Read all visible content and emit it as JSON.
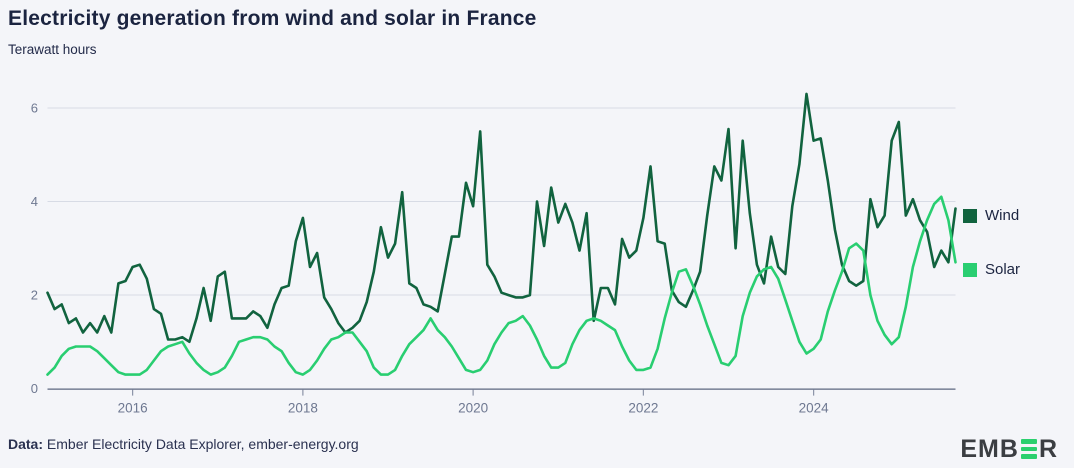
{
  "header": {
    "title": "Electricity generation from wind and solar in France",
    "subtitle": "Terawatt hours"
  },
  "legend": [
    {
      "label": "Wind",
      "color": "#11633f"
    },
    {
      "label": "Solar",
      "color": "#29ce71"
    }
  ],
  "footer": {
    "prefix": "Data:",
    "text": " Ember Electricity Data Explorer, ember-energy.org"
  },
  "logo": {
    "text_left": "EMB",
    "text_right": "R",
    "bar_color": "#2bd06e"
  },
  "colors": {
    "background": "#f4f5f9",
    "title_text": "#1b2440",
    "axis_label": "#6e7891",
    "gridline": "#d7dbe5",
    "axis_line": "#5c6680",
    "tick": "#8b93a8",
    "wind": "#11633f",
    "solar": "#29ce71"
  },
  "chart_data": {
    "type": "line",
    "title": "Electricity generation from wind and solar in France",
    "ylabel": "Terawatt hours",
    "xlabel": "",
    "frequency": "monthly",
    "x_start": "2015-01",
    "x_end": "2025-09",
    "grid": "horizontal",
    "legend_position": "right",
    "ylim": [
      0,
      6.6
    ],
    "y_ticks": [
      0,
      2,
      4,
      6
    ],
    "x_tick_labels": [
      "2016",
      "2018",
      "2020",
      "2022",
      "2024"
    ],
    "x_tick_month_indices": [
      12,
      36,
      60,
      84,
      108
    ],
    "series": [
      {
        "name": "Wind",
        "color": "#11633f",
        "values": [
          2.05,
          1.7,
          1.8,
          1.4,
          1.5,
          1.2,
          1.4,
          1.2,
          1.55,
          1.2,
          2.25,
          2.3,
          2.6,
          2.65,
          2.35,
          1.7,
          1.6,
          1.05,
          1.05,
          1.1,
          1.0,
          1.5,
          2.15,
          1.45,
          2.4,
          2.5,
          1.5,
          1.5,
          1.5,
          1.65,
          1.55,
          1.3,
          1.8,
          2.15,
          2.2,
          3.15,
          3.65,
          2.6,
          2.9,
          1.95,
          1.7,
          1.4,
          1.2,
          1.3,
          1.45,
          1.85,
          2.5,
          3.45,
          2.8,
          3.1,
          4.2,
          2.25,
          2.15,
          1.8,
          1.75,
          1.65,
          2.45,
          3.25,
          3.25,
          4.4,
          3.9,
          5.5,
          2.65,
          2.4,
          2.05,
          2.0,
          1.95,
          1.95,
          2.0,
          4.0,
          3.05,
          4.3,
          3.55,
          3.95,
          3.55,
          2.95,
          3.75,
          1.45,
          2.15,
          2.15,
          1.8,
          3.2,
          2.8,
          2.95,
          3.65,
          4.75,
          3.15,
          3.1,
          2.1,
          1.85,
          1.75,
          2.1,
          2.5,
          3.7,
          4.75,
          4.45,
          5.55,
          3.0,
          5.3,
          3.75,
          2.65,
          2.25,
          3.25,
          2.6,
          2.45,
          3.9,
          4.8,
          6.3,
          5.3,
          5.35,
          4.45,
          3.4,
          2.65,
          2.3,
          2.2,
          2.3,
          4.05,
          3.45,
          3.7,
          5.3,
          5.7,
          3.7,
          4.05,
          3.6,
          3.35,
          2.6,
          2.95,
          2.7,
          3.85
        ]
      },
      {
        "name": "Solar",
        "color": "#29ce71",
        "values": [
          0.3,
          0.45,
          0.7,
          0.85,
          0.9,
          0.9,
          0.9,
          0.8,
          0.65,
          0.5,
          0.35,
          0.3,
          0.3,
          0.3,
          0.4,
          0.6,
          0.8,
          0.9,
          0.95,
          1.0,
          0.75,
          0.55,
          0.4,
          0.3,
          0.35,
          0.45,
          0.7,
          1.0,
          1.05,
          1.1,
          1.1,
          1.05,
          0.9,
          0.8,
          0.55,
          0.35,
          0.3,
          0.4,
          0.6,
          0.85,
          1.05,
          1.1,
          1.2,
          1.2,
          1.0,
          0.8,
          0.45,
          0.3,
          0.3,
          0.4,
          0.7,
          0.95,
          1.1,
          1.25,
          1.5,
          1.25,
          1.1,
          0.9,
          0.65,
          0.4,
          0.35,
          0.4,
          0.6,
          0.95,
          1.2,
          1.4,
          1.45,
          1.55,
          1.35,
          1.05,
          0.7,
          0.45,
          0.45,
          0.55,
          0.95,
          1.25,
          1.45,
          1.5,
          1.45,
          1.35,
          1.25,
          0.9,
          0.6,
          0.4,
          0.4,
          0.45,
          0.85,
          1.5,
          2.05,
          2.5,
          2.55,
          2.2,
          1.8,
          1.35,
          0.95,
          0.55,
          0.5,
          0.7,
          1.55,
          2.05,
          2.4,
          2.55,
          2.6,
          2.35,
          1.9,
          1.45,
          1.0,
          0.75,
          0.85,
          1.05,
          1.65,
          2.1,
          2.5,
          3.0,
          3.1,
          2.95,
          2.0,
          1.45,
          1.15,
          0.95,
          1.1,
          1.75,
          2.6,
          3.15,
          3.6,
          3.95,
          4.1,
          3.6,
          2.7
        ]
      }
    ]
  }
}
